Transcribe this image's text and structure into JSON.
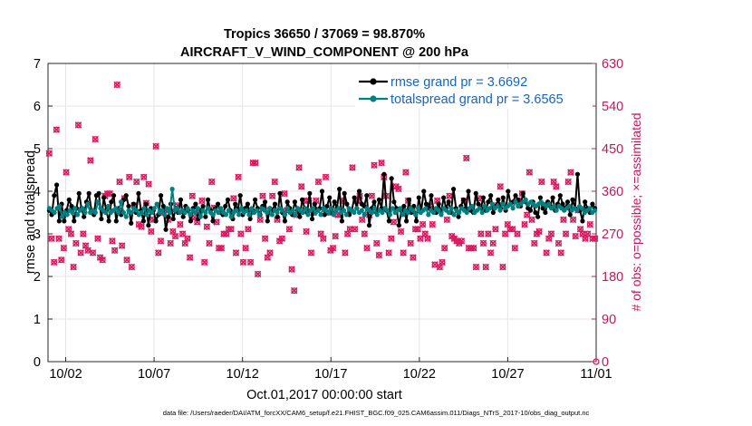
{
  "chart_data": {
    "type": "line",
    "title_line1": "Tropics 36650 / 37069 = 98.870%",
    "title_line2": "AIRCRAFT_V_WIND_COMPONENT @ 200 hPa",
    "xlabel": "Oct.01,2017 00:00:00 start",
    "ylabel": "rmse and totalspread",
    "y2label": "# of obs: o=possible; ×=assimilated",
    "xlim": [
      0,
      31
    ],
    "ylim": [
      0,
      7
    ],
    "y2lim": [
      0,
      630
    ],
    "x_ticks": [
      {
        "x": 1,
        "label": "10/02"
      },
      {
        "x": 6,
        "label": "10/07"
      },
      {
        "x": 11,
        "label": "10/12"
      },
      {
        "x": 16,
        "label": "10/17"
      },
      {
        "x": 21,
        "label": "10/22"
      },
      {
        "x": 26,
        "label": "10/27"
      },
      {
        "x": 31,
        "label": "11/01"
      }
    ],
    "y_ticks": [
      "0",
      "1",
      "2",
      "3",
      "4",
      "5",
      "6",
      "7"
    ],
    "y2_ticks": [
      "0",
      "90",
      "180",
      "270",
      "360",
      "450",
      "540",
      "630"
    ],
    "colors": {
      "rmse": "#000000",
      "spread": "#008080",
      "obs": "#d81b60",
      "legend_text": "#1565c0",
      "right_axis": "#c2185b",
      "grid": "#e6e6e6"
    },
    "series": [
      {
        "name": "rmse grand pr = 3.6692",
        "values": [
          3.55,
          3.45,
          3.9,
          4.15,
          3.3,
          3.7,
          3.3,
          3.55,
          3.8,
          3.65,
          3.3,
          3.6,
          3.95,
          3.6,
          3.4,
          3.75,
          3.95,
          3.55,
          3.45,
          3.9,
          3.95,
          3.35,
          3.85,
          3.55,
          3.3,
          3.75,
          3.9,
          3.3,
          3.6,
          3.45,
          3.8,
          3.9,
          3.65,
          3.25,
          3.7,
          3.5,
          3.95,
          3.55,
          3.3,
          3.7,
          3.2,
          3.6,
          3.55,
          3.3,
          3.45,
          3.9,
          3.65,
          3.1,
          3.4,
          3.7,
          3.35,
          3.6,
          3.5,
          3.8,
          3.4,
          3.65,
          3.55,
          3.3,
          3.6,
          3.7,
          3.35,
          3.55,
          3.65,
          3.4,
          3.8,
          3.55,
          3.3,
          3.6,
          3.7,
          3.5,
          3.45,
          3.65,
          3.8,
          3.55,
          3.35,
          3.7,
          3.55,
          3.9,
          3.45,
          3.6,
          3.7,
          3.35,
          3.55,
          3.8,
          3.6,
          3.45,
          3.65,
          3.75,
          3.3,
          3.6,
          3.55,
          3.7,
          3.4,
          3.95,
          3.5,
          3.3,
          3.75,
          3.6,
          3.45,
          3.75,
          3.55,
          3.4,
          3.8,
          3.6,
          3.5,
          3.95,
          3.35,
          3.7,
          3.55,
          3.6,
          4.0,
          3.45,
          3.65,
          3.85,
          3.5,
          3.75,
          3.6,
          4.05,
          3.3,
          3.95,
          3.7,
          3.45,
          3.55,
          3.85,
          3.6,
          4.0,
          3.7,
          3.65,
          3.9,
          3.2,
          3.6,
          3.75,
          3.5,
          3.8,
          3.6,
          4.4,
          3.55,
          3.3,
          4.3,
          3.75,
          3.6,
          3.2,
          3.55,
          3.65,
          3.3,
          3.8,
          3.5,
          3.65,
          3.3,
          3.85,
          3.55,
          4.0,
          3.7,
          3.6,
          3.9,
          3.55,
          3.5,
          3.7,
          3.5,
          3.85,
          3.6,
          3.75,
          3.5,
          4.05,
          3.6,
          3.4,
          3.65,
          3.8,
          3.6,
          4.0,
          3.55,
          3.5,
          3.95,
          3.7,
          3.6,
          3.85,
          3.55,
          3.75,
          3.9,
          3.5,
          3.65,
          3.8,
          3.6,
          3.85,
          3.55,
          4.0,
          3.7,
          3.75,
          3.9,
          3.8,
          3.65,
          3.95,
          3.75,
          3.6,
          3.55,
          3.75,
          3.5,
          3.4,
          3.85,
          3.6,
          3.5,
          3.75,
          3.65,
          3.85,
          3.55,
          3.7,
          3.9,
          3.7,
          3.6,
          3.75,
          3.45,
          3.8,
          3.6,
          4.4,
          3.55,
          3.3,
          3.75,
          3.6,
          3.5,
          3.7,
          3.6
        ]
      },
      {
        "name": "totalspread grand pr = 3.6565",
        "values": [
          3.6,
          3.55,
          3.5,
          3.6,
          3.65,
          3.4,
          3.5,
          3.45,
          3.55,
          3.5,
          3.6,
          3.45,
          3.55,
          3.6,
          3.5,
          3.7,
          3.5,
          3.55,
          3.5,
          3.75,
          3.6,
          3.55,
          3.5,
          3.65,
          3.5,
          3.55,
          3.6,
          3.5,
          3.75,
          3.5,
          3.4,
          3.55,
          3.5,
          3.6,
          3.55,
          3.45,
          3.5,
          3.6,
          3.45,
          3.55,
          3.5,
          3.6,
          3.7,
          3.5,
          3.55,
          3.45,
          3.6,
          3.5,
          4.05,
          3.55,
          3.6,
          3.5,
          3.55,
          3.5,
          3.6,
          3.45,
          3.55,
          3.5,
          3.6,
          3.4,
          3.55,
          3.5,
          3.6,
          3.5,
          3.45,
          3.55,
          3.5,
          3.6,
          3.5,
          3.45,
          3.55,
          3.4,
          3.5,
          3.55,
          3.45,
          3.6,
          3.5,
          3.55,
          3.45,
          3.6,
          3.5,
          3.55,
          3.45,
          3.6,
          3.55,
          3.5,
          3.6,
          3.45,
          3.55,
          3.5,
          3.6,
          3.55,
          3.45,
          3.6,
          3.5,
          3.55,
          3.45,
          3.6,
          3.55,
          3.5,
          3.6,
          3.45,
          3.55,
          3.6,
          3.5,
          3.55,
          3.45,
          3.6,
          3.55,
          3.5,
          3.6,
          3.45,
          3.55,
          3.6,
          3.5,
          3.55,
          3.45,
          3.6,
          3.55,
          3.5,
          3.6,
          3.5,
          3.55,
          3.45,
          3.6,
          3.55,
          3.5,
          3.6,
          3.45,
          3.55,
          3.5,
          3.6,
          3.55,
          3.45,
          3.6,
          3.5,
          3.55,
          3.6,
          3.45,
          3.55,
          3.5,
          3.6,
          3.55,
          3.45,
          3.6,
          3.5,
          3.55,
          3.6,
          3.45,
          3.55,
          3.5,
          3.6,
          3.55,
          3.45,
          3.6,
          3.55,
          3.5,
          3.6,
          3.45,
          3.55,
          3.5,
          3.6,
          3.55,
          3.5,
          3.6,
          3.65,
          3.5,
          3.55,
          3.6,
          3.5,
          3.65,
          3.55,
          3.6,
          3.7,
          3.6,
          3.65,
          3.55,
          3.7,
          3.6,
          3.65,
          3.7,
          3.6,
          3.75,
          3.65,
          3.7,
          3.75,
          3.8,
          3.7,
          3.75,
          3.7,
          3.65,
          3.7,
          3.75,
          3.7,
          3.65,
          3.7,
          3.6,
          3.65,
          3.55,
          3.65,
          3.6,
          3.55,
          3.6,
          3.65,
          3.55,
          3.6,
          3.55,
          3.65,
          3.6,
          3.5,
          3.55,
          3.6,
          3.5,
          3.55
        ]
      }
    ],
    "obs_count": [
      440,
      260,
      210,
      490,
      260,
      215,
      240,
      400,
      280,
      270,
      200,
      250,
      500,
      230,
      270,
      245,
      235,
      425,
      230,
      470,
      260,
      220,
      215,
      350,
      355,
      355,
      255,
      235,
      585,
      380,
      245,
      345,
      215,
      390,
      200,
      330,
      380,
      290,
      285,
      390,
      335,
      375,
      275,
      300,
      455,
      230,
      255,
      315,
      320,
      300,
      250,
      275,
      265,
      330,
      290,
      270,
      250,
      260,
      220,
      350,
      305,
      295,
      310,
      340,
      210,
      285,
      250,
      380,
      325,
      295,
      240,
      240,
      270,
      270,
      280,
      280,
      345,
      230,
      390,
      270,
      210,
      240,
      280,
      210,
      420,
      420,
      185,
      300,
      350,
      260,
      220,
      230,
      350,
      380,
      300,
      255,
      260,
      355,
      320,
      280,
      195,
      150,
      310,
      410,
      370,
      340,
      275,
      340,
      230,
      315,
      340,
      380,
      270,
      260,
      390,
      315,
      235,
      240,
      265,
      310,
      310,
      340,
      230,
      270,
      280,
      410,
      280,
      340,
      350,
      300,
      270,
      240,
      310,
      350,
      415,
      250,
      225,
      420,
      390,
      350,
      230,
      260,
      295,
      370,
      365,
      275,
      230,
      400,
      340,
      250,
      220,
      280,
      280,
      260,
      290,
      270,
      260,
      330,
      290,
      205,
      340,
      200,
      210,
      240,
      300,
      350,
      265,
      260,
      255,
      250,
      255,
      340,
      430,
      240,
      240,
      240,
      200,
      345,
      270,
      250,
      200,
      270,
      230,
      250,
      280,
      330,
      370,
      200,
      270,
      290,
      280,
      280,
      240,
      270,
      340,
      355,
      290,
      310,
      400,
      300,
      250,
      270,
      275,
      380,
      330,
      230,
      260,
      270,
      380,
      370,
      250,
      230,
      300,
      270,
      380,
      400,
      300,
      265,
      320,
      280,
      270,
      260,
      270,
      290,
      260,
      260
    ],
    "obs_markers": "o=possible; ×=assimilated"
  },
  "footer": "data file: /Users/raeder/DAI/ATM_forcXX/CAM6_setup/f.e21.FHIST_BGC.f09_025.CAM6assim.011/Diags_NTrS_2017-10/obs_diag_output.nc"
}
